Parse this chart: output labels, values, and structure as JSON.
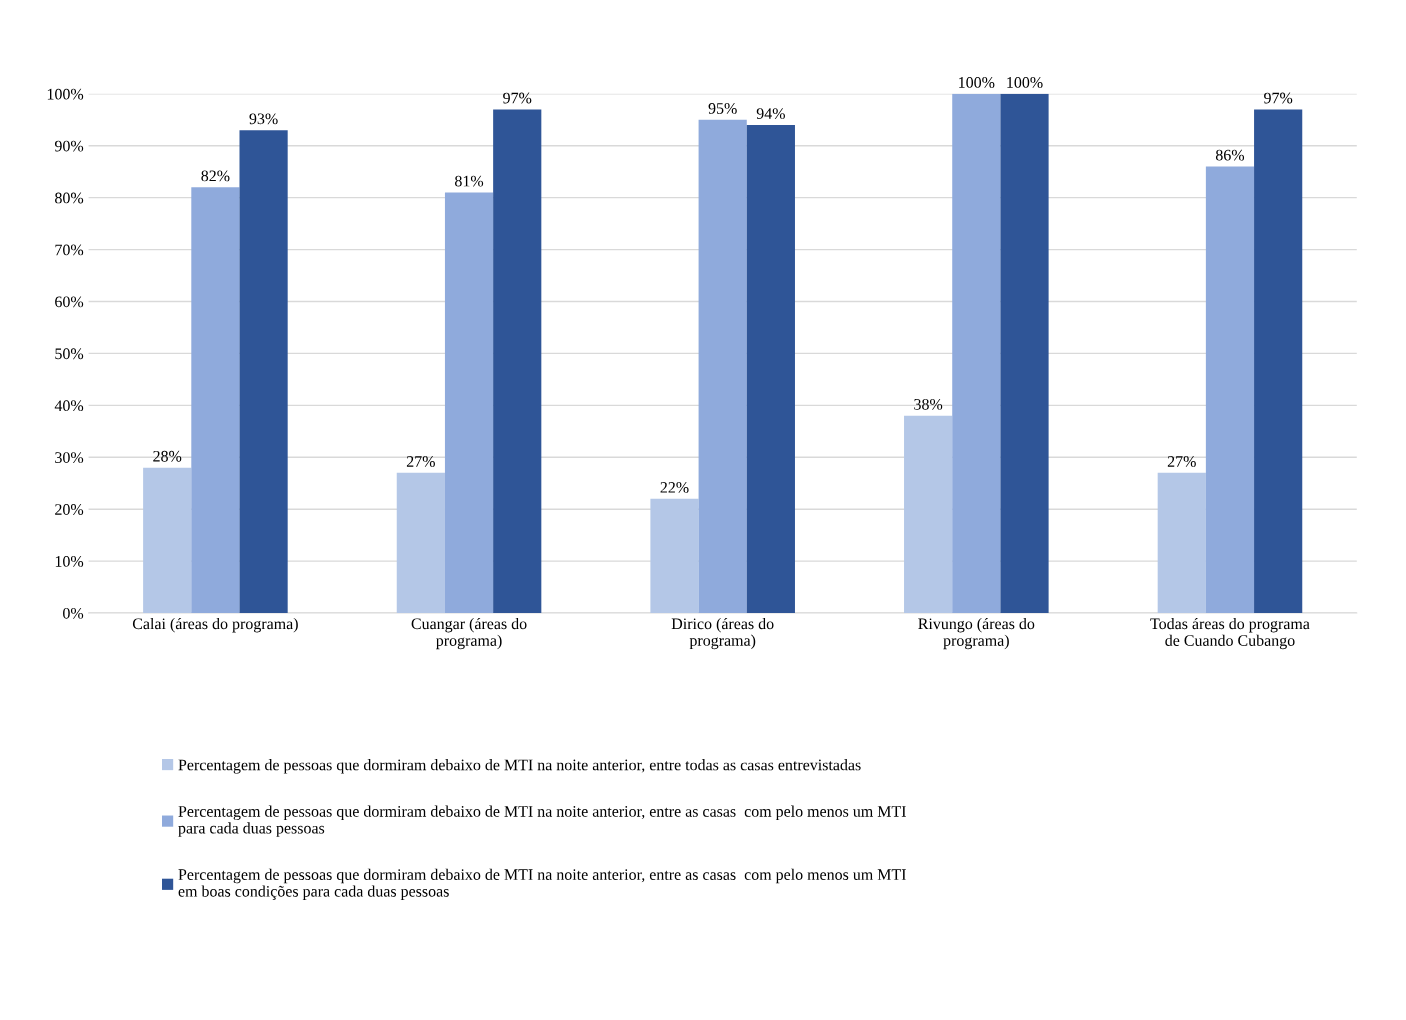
{
  "chart_data": {
    "type": "bar",
    "categories": [
      "Calai (áreas do programa)",
      "Cuangar (áreas do\nprograma)",
      "Dirico (áreas do\nprograma)",
      "Rivungo (áreas do\nprograma)",
      "Todas áreas do programa\nde Cuando Cubango"
    ],
    "series": [
      {
        "name": "Percentagem de pessoas que dormiram debaixo de MTI na noite anterior, entre todas as casas entrevistadas",
        "color": "#b4c7e7",
        "values": [
          28,
          27,
          22,
          38,
          27
        ],
        "value_labels": [
          "28%",
          "27%",
          "22%",
          "38%",
          "27%"
        ]
      },
      {
        "name": "Percentagem de pessoas que dormiram debaixo de MTI na noite anterior, entre as casas  com pelo menos um MTI\npara cada duas pessoas",
        "color": "#8faadc",
        "values": [
          82,
          81,
          95,
          100,
          86
        ],
        "value_labels": [
          "82%",
          "81%",
          "95%",
          "100%",
          "86%"
        ]
      },
      {
        "name": "Percentagem de pessoas que dormiram debaixo de MTI na noite anterior, entre as casas  com pelo menos um MTI\nem boas condições para cada duas pessoas",
        "color": "#2f5597",
        "values": [
          93,
          97,
          94,
          100,
          97
        ],
        "value_labels": [
          "93%",
          "97%",
          "94%",
          "100%",
          "97%"
        ]
      }
    ],
    "ylim": [
      0,
      100
    ],
    "yticks": [
      {
        "value": 0,
        "label": "0%"
      },
      {
        "value": 10,
        "label": "10%"
      },
      {
        "value": 20,
        "label": "20%"
      },
      {
        "value": 30,
        "label": "30%"
      },
      {
        "value": 40,
        "label": "40%"
      },
      {
        "value": 50,
        "label": "50%"
      },
      {
        "value": 60,
        "label": "60%"
      },
      {
        "value": 70,
        "label": "70%"
      },
      {
        "value": 80,
        "label": "80%"
      },
      {
        "value": 90,
        "label": "90%"
      },
      {
        "value": 100,
        "label": "100%"
      }
    ],
    "grid": "y",
    "legend": "bottom"
  }
}
